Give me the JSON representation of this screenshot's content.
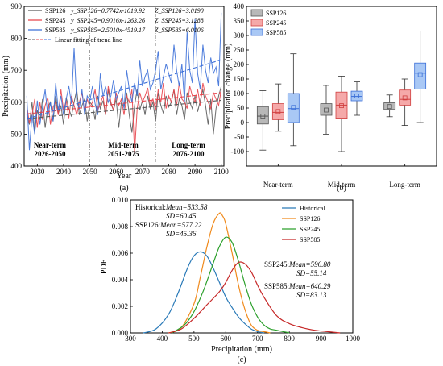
{
  "figure_labels": [
    "(a)",
    "(b)",
    "(c)"
  ],
  "colors": {
    "ssp126": "#5a5a5a",
    "ssp245": "#e8434a",
    "ssp585": "#3b6fd8",
    "historical": "#2a7ab8",
    "pdf126": "#f08a1c",
    "pdf245": "#2ca02c",
    "pdf585": "#c62828",
    "box126": "#b8b8b8",
    "box245": "#f5a9a9",
    "box585": "#a9c8f5"
  },
  "chart_data": [
    {
      "type": "line",
      "xlabel": "Year",
      "ylabel": "Precipitation (mm)",
      "xlim": [
        2025,
        2101
      ],
      "ylim": [
        400,
        900
      ],
      "xticks": [
        2030,
        2040,
        2050,
        2060,
        2070,
        2080,
        2090,
        2100
      ],
      "yticks": [
        400,
        500,
        600,
        700,
        800,
        900
      ],
      "period_dividers": [
        2050,
        2075
      ],
      "periods": [
        {
          "name": "Near-term",
          "range": "2026-2050"
        },
        {
          "name": "Mid-term",
          "range": "2051-2075"
        },
        {
          "name": "Long-term",
          "range": "2076-2100"
        }
      ],
      "legend": [
        {
          "name": "SSP126",
          "eq": "y_SSP126=0.7742x-1019.92",
          "z": "Z_SSP126=3.0190"
        },
        {
          "name": "SSP245",
          "eq": "y_SSP245=0.9016x-1263.26",
          "z": "Z_SSP245=3.1288"
        },
        {
          "name": "SSP585",
          "eq": "y_SSP585=2.5010x-4519.17",
          "z": "Z_SSP585=6.0106"
        }
      ],
      "legend_fit": "Linear fitting of trend line",
      "series": [
        {
          "name": "SSP126",
          "slope": 0.7742,
          "intercept": -1019.92,
          "values": [
            560,
            530,
            600,
            505,
            575,
            545,
            610,
            520,
            585,
            600,
            540,
            620,
            565,
            590,
            530,
            615,
            580,
            555,
            600,
            640,
            560,
            590,
            610,
            540,
            600,
            590,
            545,
            620,
            580,
            605,
            560,
            640,
            595,
            575,
            610,
            520,
            600,
            585,
            630,
            560,
            505,
            590,
            640,
            575,
            605,
            560,
            620,
            580,
            600,
            540,
            630,
            590,
            565,
            620,
            585,
            600,
            640,
            560,
            610,
            590,
            545,
            630,
            600,
            580,
            620,
            570,
            605,
            640,
            590,
            530,
            610,
            500,
            580,
            620,
            650
          ]
        },
        {
          "name": "SSP245",
          "slope": 0.9016,
          "intercept": -1263.26,
          "values": [
            590,
            535,
            560,
            610,
            520,
            600,
            545,
            590,
            615,
            530,
            585,
            600,
            560,
            640,
            575,
            605,
            550,
            620,
            590,
            560,
            600,
            630,
            570,
            610,
            585,
            600,
            640,
            575,
            595,
            620,
            560,
            650,
            600,
            575,
            630,
            590,
            610,
            560,
            620,
            600,
            640,
            440,
            580,
            630,
            600,
            620,
            645,
            590,
            610,
            575,
            640,
            600,
            660,
            580,
            620,
            600,
            640,
            590,
            660,
            610,
            600,
            580,
            650,
            620,
            600,
            640,
            590,
            660,
            620,
            600,
            580,
            630,
            610,
            590,
            640
          ]
        },
        {
          "name": "SSP585",
          "slope": 2.501,
          "intercept": -4519.17,
          "values": [
            620,
            450,
            560,
            500,
            605,
            530,
            585,
            640,
            555,
            600,
            540,
            660,
            575,
            620,
            560,
            610,
            650,
            595,
            770,
            600,
            580,
            640,
            560,
            620,
            605,
            650,
            595,
            560,
            690,
            620,
            650,
            600,
            620,
            670,
            610,
            630,
            650,
            580,
            700,
            640,
            600,
            660,
            620,
            730,
            650,
            680,
            700,
            640,
            660,
            700,
            760,
            640,
            680,
            720,
            690,
            660,
            780,
            700,
            650,
            720,
            600,
            820,
            700,
            660,
            860,
            690,
            640,
            780,
            700,
            660,
            740,
            690,
            710,
            650,
            880
          ]
        }
      ]
    },
    {
      "type": "box",
      "ylabel": "Precipitation change (mm)",
      "ylim": [
        -150,
        400
      ],
      "yticks": [
        -100,
        -50,
        0,
        50,
        100,
        150,
        200,
        250,
        300,
        350,
        400
      ],
      "categories": [
        "Near-term",
        "Mid-term",
        "Long-term"
      ],
      "legend": [
        "SSP126",
        "SSP245",
        "SSP585"
      ],
      "series": [
        {
          "name": "SSP126",
          "boxes": [
            {
              "min": -95,
              "q1": -5,
              "median": 22,
              "mean": 22,
              "q3": 55,
              "max": 110
            },
            {
              "min": -40,
              "q1": 25,
              "median": 43,
              "mean": 43,
              "q3": 65,
              "max": 128
            },
            {
              "min": 20,
              "q1": 45,
              "median": 57,
              "mean": 55,
              "q3": 68,
              "max": 95
            }
          ]
        },
        {
          "name": "SSP245",
          "boxes": [
            {
              "min": -30,
              "q1": 10,
              "median": 35,
              "mean": 38,
              "q3": 65,
              "max": 133
            },
            {
              "min": -100,
              "q1": 15,
              "median": 60,
              "mean": 58,
              "q3": 105,
              "max": 160
            },
            {
              "min": -10,
              "q1": 60,
              "median": 80,
              "mean": 85,
              "q3": 112,
              "max": 150
            }
          ]
        },
        {
          "name": "SSP585",
          "boxes": [
            {
              "min": -80,
              "q1": 0,
              "median": 48,
              "mean": 52,
              "q3": 100,
              "max": 237
            },
            {
              "min": 25,
              "q1": 75,
              "median": 90,
              "mean": 92,
              "q3": 108,
              "max": 140
            },
            {
              "min": 0,
              "q1": 115,
              "median": 170,
              "mean": 165,
              "q3": 205,
              "max": 315
            }
          ]
        }
      ]
    },
    {
      "type": "line",
      "xlabel": "Precipitation (mm)",
      "ylabel": "PDF",
      "xlim": [
        300,
        1000
      ],
      "ylim": [
        0,
        0.01
      ],
      "xticks": [
        300,
        400,
        500,
        600,
        700,
        800,
        900,
        1000
      ],
      "yticks": [
        "0.000",
        "0.002",
        "0.004",
        "0.006",
        "0.008",
        "0.010"
      ],
      "legend": [
        "Historical",
        "SSP126",
        "SSP245",
        "SSP585"
      ],
      "annotations": [
        {
          "label": "Historical:",
          "mean": "Mean=533.58",
          "sd": "SD=60.45"
        },
        {
          "label": "SSP126:",
          "mean": "Mean=577.22",
          "sd": "SD=45.36"
        },
        {
          "label": "SSP245:",
          "mean": "Mean=596.80",
          "sd": "SD=55.14"
        },
        {
          "label": "SSP585:",
          "mean": "Mean=640.29",
          "sd": "SD=83.13"
        }
      ],
      "series": [
        {
          "name": "Historical",
          "x": [
            340,
            380,
            420,
            450,
            480,
            500,
            520,
            540,
            560,
            580,
            600,
            620,
            640,
            660,
            680,
            700,
            720
          ],
          "y": [
            0.0,
            0.0003,
            0.0014,
            0.003,
            0.0049,
            0.0058,
            0.0061,
            0.0058,
            0.0049,
            0.0038,
            0.0027,
            0.0019,
            0.0012,
            0.0007,
            0.0003,
            0.0001,
            0.0
          ]
        },
        {
          "name": "SSP126",
          "x": [
            420,
            460,
            500,
            520,
            540,
            560,
            580,
            590,
            600,
            620,
            640,
            660,
            680,
            700,
            720,
            740
          ],
          "y": [
            0.0,
            0.0004,
            0.0022,
            0.0042,
            0.0064,
            0.0082,
            0.009,
            0.0088,
            0.0082,
            0.006,
            0.0036,
            0.0018,
            0.0006,
            0.0002,
            0.0001,
            0.0
          ]
        },
        {
          "name": "SSP245",
          "x": [
            430,
            470,
            500,
            530,
            560,
            580,
            600,
            620,
            640,
            660,
            680,
            700,
            720,
            740,
            760,
            780,
            800
          ],
          "y": [
            0.0,
            0.0006,
            0.0016,
            0.0032,
            0.0052,
            0.0065,
            0.0072,
            0.0068,
            0.0054,
            0.0037,
            0.0022,
            0.0012,
            0.0006,
            0.0003,
            0.0002,
            0.0001,
            0.0
          ]
        },
        {
          "name": "SSP585",
          "x": [
            420,
            460,
            500,
            540,
            580,
            600,
            620,
            640,
            660,
            680,
            700,
            720,
            760,
            800,
            840,
            880,
            920,
            960
          ],
          "y": [
            0.0,
            0.0003,
            0.0011,
            0.0021,
            0.0031,
            0.0038,
            0.0047,
            0.0053,
            0.0052,
            0.0046,
            0.0036,
            0.0027,
            0.0013,
            0.0007,
            0.0004,
            0.0002,
            0.0001,
            0.0
          ]
        }
      ]
    }
  ]
}
